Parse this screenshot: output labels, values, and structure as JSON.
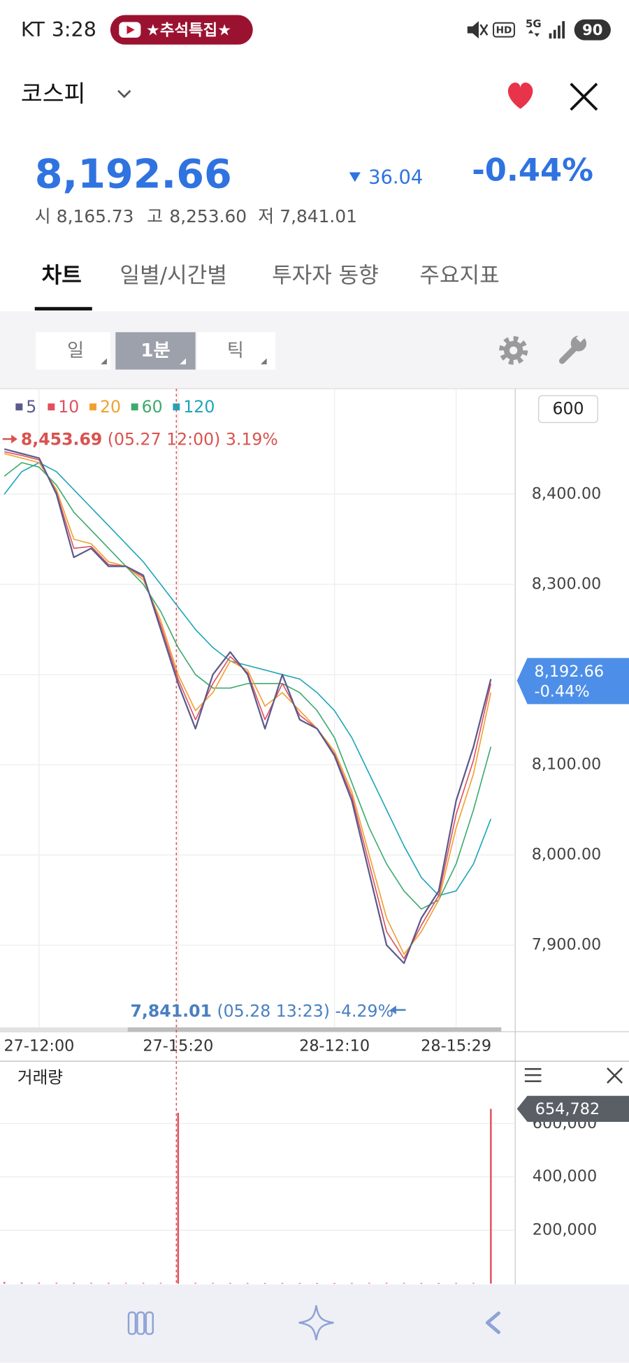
{
  "status_bar": {
    "carrier": "KT",
    "time": "3:28",
    "badge": "★추석특집★",
    "hd": "HD",
    "network": "5G",
    "battery": "90"
  },
  "header": {
    "title": "코스피"
  },
  "quote": {
    "price": "8,192.66",
    "change": "36.04",
    "change_pct": "-0.44%",
    "open_label": "시",
    "open": "8,165.73",
    "high_label": "고",
    "high": "8,253.60",
    "low_label": "저",
    "low": "7,841.01"
  },
  "tabs": [
    "차트",
    "일별/시간별",
    "투자자 동향",
    "주요지표"
  ],
  "intervals": [
    "일",
    "1분",
    "틱"
  ],
  "chart_data": [
    {
      "type": "line",
      "period": "600",
      "categories": [
        null,
        null,
        "27-12:00",
        null,
        null,
        null,
        null,
        null,
        null,
        null,
        "27-15:20",
        null,
        null,
        null,
        null,
        null,
        null,
        null,
        null,
        "28-12:10",
        null,
        null,
        null,
        null,
        null,
        null,
        "28-15:29",
        null,
        null
      ],
      "series": [
        {
          "name": "5",
          "color": "#5a5a8c",
          "values": [
            8450,
            8445,
            8440,
            8400,
            8330,
            8340,
            8320,
            8320,
            8310,
            8250,
            8190,
            8140,
            8200,
            8225,
            8200,
            8140,
            8200,
            8150,
            8140,
            8110,
            8060,
            7980,
            7900,
            7880,
            7930,
            7960,
            8060,
            8120,
            8195
          ]
        },
        {
          "name": "10",
          "color": "#e0505f",
          "values": [
            8447,
            8443,
            8438,
            8402,
            8340,
            8342,
            8322,
            8320,
            8308,
            8255,
            8195,
            8150,
            8190,
            8220,
            8202,
            8150,
            8190,
            8155,
            8140,
            8112,
            8065,
            7990,
            7915,
            7885,
            7922,
            7955,
            8045,
            8105,
            8190
          ]
        },
        {
          "name": "20",
          "color": "#f0a030",
          "values": [
            8445,
            8440,
            8435,
            8405,
            8350,
            8345,
            8325,
            8320,
            8305,
            8260,
            8200,
            8160,
            8180,
            8215,
            8205,
            8165,
            8180,
            8160,
            8140,
            8115,
            8070,
            8000,
            7930,
            7890,
            7915,
            7950,
            8030,
            8090,
            8180
          ]
        },
        {
          "name": "60",
          "color": "#3daa6e",
          "values": [
            8420,
            8435,
            8430,
            8410,
            8380,
            8360,
            8340,
            8320,
            8300,
            8270,
            8230,
            8200,
            8185,
            8185,
            8190,
            8190,
            8190,
            8180,
            8160,
            8130,
            8080,
            8030,
            7990,
            7960,
            7940,
            7950,
            7990,
            8050,
            8120
          ]
        },
        {
          "name": "120",
          "color": "#1fa5b8",
          "values": [
            8400,
            8425,
            8435,
            8425,
            8405,
            8385,
            8365,
            8345,
            8325,
            8300,
            8275,
            8250,
            8230,
            8215,
            8210,
            8205,
            8200,
            8195,
            8180,
            8160,
            8130,
            8090,
            8050,
            8010,
            7975,
            7955,
            7960,
            7990,
            8040
          ]
        }
      ],
      "ylim": [
        7806,
        8516
      ],
      "yticks": [
        {
          "value": 7900,
          "label": "7,900.00"
        },
        {
          "value": 8000,
          "label": "8,000.00"
        },
        {
          "value": 8100,
          "label": "8,100.00"
        },
        {
          "value": 8200,
          "label": "8,200.00"
        },
        {
          "value": 8300,
          "label": "8,300.00"
        },
        {
          "value": 8400,
          "label": "8,400.00"
        }
      ],
      "grid": true,
      "high_note": {
        "price": "8,453.69",
        "detail": "(05.27 12:00) 3.19%"
      },
      "low_note": {
        "price": "7,841.01",
        "detail": "(05.28 13:23) -4.29%"
      },
      "last_tag": {
        "price": "8,192.66",
        "change": "-0.44%"
      }
    },
    {
      "type": "bar",
      "title": "거래량",
      "categories": [
        null,
        null,
        null,
        null,
        null,
        null,
        null,
        null,
        null,
        null,
        null,
        null,
        null,
        null,
        null,
        null,
        null,
        null,
        null,
        null,
        null,
        null,
        null,
        null,
        null,
        null,
        null,
        null,
        null
      ],
      "values": [
        6000,
        4000,
        3500,
        3000,
        3200,
        2800,
        3000,
        2600,
        2500,
        2700,
        640000,
        3000,
        2500,
        2200,
        2000,
        2100,
        2300,
        2000,
        1900,
        2000,
        2400,
        2600,
        2800,
        2500,
        2300,
        2200,
        2400,
        2600,
        654782
      ],
      "value_labels": [
        null,
        null,
        null,
        null,
        null,
        null,
        null,
        null,
        null,
        null,
        null,
        null,
        null,
        null,
        null,
        null,
        null,
        null,
        null,
        null,
        null,
        null,
        null,
        null,
        null,
        null,
        null,
        null,
        "654,782"
      ],
      "color": "#e0505f",
      "ylim": [
        0,
        830000
      ],
      "yticks": [
        {
          "value": 200000,
          "label": "200,000"
        },
        {
          "value": 400000,
          "label": "400,000"
        },
        {
          "value": 600000,
          "label": "600,000"
        }
      ],
      "grid": true
    }
  ]
}
